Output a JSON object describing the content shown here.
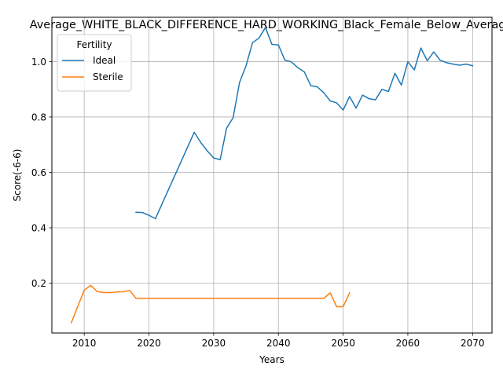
{
  "chart_data": {
    "type": "line",
    "title": "Average_WHITE_BLACK_DIFFERENCE_HARD_WORKING_Black_Female_Below_Average",
    "xlabel": "Years",
    "ylabel": "Score(-6-6)",
    "xlim": [
      2005,
      2073
    ],
    "ylim": [
      0.02,
      1.16
    ],
    "xticks": [
      2010,
      2020,
      2030,
      2040,
      2050,
      2060,
      2070
    ],
    "yticks": [
      0.2,
      0.4,
      0.6,
      0.8,
      1.0
    ],
    "grid": true,
    "legend": {
      "title": "Fertility",
      "placement": "top-left"
    },
    "series": [
      {
        "name": "Ideal",
        "color": "#1f77b4",
        "x": [
          2018,
          2019,
          2020,
          2021,
          2022,
          2023,
          2024,
          2025,
          2026,
          2027,
          2028,
          2029,
          2030,
          2031,
          2032,
          2033,
          2034,
          2035,
          2036,
          2037,
          2038,
          2039,
          2040,
          2041,
          2042,
          2043,
          2044,
          2045,
          2046,
          2047,
          2048,
          2049,
          2050,
          2051,
          2052,
          2053,
          2054,
          2055,
          2056,
          2057,
          2058,
          2059,
          2060,
          2061,
          2062,
          2063,
          2064,
          2065,
          2066,
          2067,
          2068,
          2069,
          2070
        ],
        "y": [
          0.456,
          0.455,
          0.445,
          0.433,
          0.485,
          0.537,
          0.589,
          0.641,
          0.693,
          0.745,
          0.708,
          0.678,
          0.652,
          0.646,
          0.76,
          0.797,
          0.925,
          0.985,
          1.068,
          1.085,
          1.123,
          1.062,
          1.06,
          1.005,
          0.999,
          0.978,
          0.963,
          0.913,
          0.909,
          0.888,
          0.858,
          0.851,
          0.825,
          0.874,
          0.832,
          0.879,
          0.866,
          0.862,
          0.9,
          0.892,
          0.958,
          0.915,
          1.0,
          0.97,
          1.049,
          1.003,
          1.035,
          1.005,
          0.996,
          0.991,
          0.987,
          0.991,
          0.985
        ]
      },
      {
        "name": "Sterile",
        "color": "#ff7f0e",
        "x": [
          2008,
          2009,
          2010,
          2011,
          2012,
          2013,
          2014,
          2015,
          2016,
          2017,
          2018,
          2019,
          2020,
          2021,
          2022,
          2023,
          2024,
          2025,
          2026,
          2027,
          2028,
          2029,
          2030,
          2031,
          2032,
          2033,
          2034,
          2035,
          2036,
          2037,
          2038,
          2039,
          2040,
          2041,
          2042,
          2043,
          2044,
          2045,
          2046,
          2047,
          2048,
          2049,
          2050,
          2051
        ],
        "y": [
          0.057,
          0.116,
          0.175,
          0.192,
          0.17,
          0.166,
          0.166,
          0.168,
          0.169,
          0.174,
          0.145,
          0.145,
          0.145,
          0.145,
          0.145,
          0.145,
          0.145,
          0.145,
          0.145,
          0.145,
          0.145,
          0.145,
          0.145,
          0.145,
          0.145,
          0.145,
          0.145,
          0.145,
          0.145,
          0.145,
          0.145,
          0.145,
          0.145,
          0.145,
          0.145,
          0.145,
          0.145,
          0.145,
          0.145,
          0.145,
          0.165,
          0.115,
          0.115,
          0.165
        ]
      }
    ]
  }
}
